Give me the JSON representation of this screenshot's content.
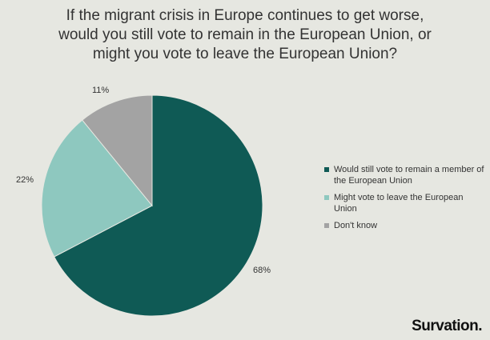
{
  "chart_data": {
    "type": "pie",
    "title_lines": [
      "If the migrant crisis in Europe continues to get worse,",
      "would you still vote to remain in the European Union, or",
      "might you vote to leave the European Union?"
    ],
    "slices": [
      {
        "label": "Would still vote to remain a member of the European Union",
        "value": 68,
        "value_label": "68%",
        "color": "#0f5a55"
      },
      {
        "label": "Might vote to leave the European Union",
        "value": 22,
        "value_label": "22%",
        "color": "#8ec8bf"
      },
      {
        "label": "Don't know",
        "value": 11,
        "value_label": "11%",
        "color": "#a3a3a3"
      }
    ],
    "legend_position": "right",
    "start_angle_deg": 0
  },
  "branding": {
    "logo_text": "Survation."
  }
}
